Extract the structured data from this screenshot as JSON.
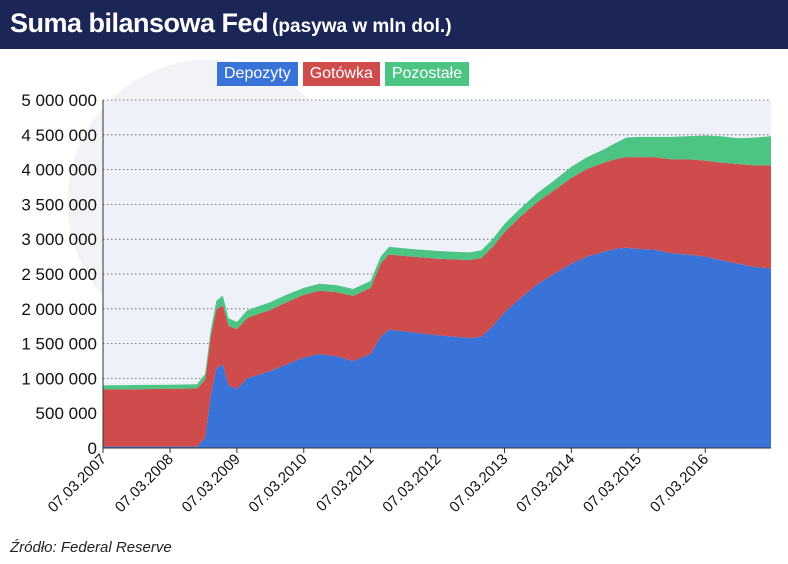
{
  "title": "Suma bilansowa Fed",
  "subtitle": "(pasywa w mln dol.)",
  "source": "Źródło: Federal Reserve",
  "colors": {
    "header": "#1b2556",
    "Depozyty": "#3a73d8",
    "Gotówka": "#cf4c4c",
    "Pozostałe": "#4cc483"
  },
  "chart_data": {
    "type": "area",
    "stacked": true,
    "title": "Suma bilansowa Fed",
    "subtitle": "(pasywa w mln dol.)",
    "legend_position": "top-center",
    "grid": true,
    "ylim": [
      0,
      5000000
    ],
    "yticks": [
      0,
      500000,
      1000000,
      1500000,
      2000000,
      2500000,
      3000000,
      3500000,
      4000000,
      4500000,
      5000000
    ],
    "ytick_labels": [
      "0",
      "500 000",
      "1 000 000",
      "1 500 000",
      "2 000 000",
      "2 500 000",
      "3 000 000",
      "3 500 000",
      "4 000 000",
      "4 500 000",
      "5 000 000"
    ],
    "xlim": [
      "2007-03-07",
      "2017-03-01"
    ],
    "xticks": [
      "2007-03-07",
      "2008-03-07",
      "2009-03-07",
      "2010-03-07",
      "2011-03-07",
      "2012-03-07",
      "2013-03-07",
      "2014-03-07",
      "2015-03-07",
      "2016-03-07"
    ],
    "xtick_labels": [
      "07.03.2007",
      "07.03.2008",
      "07.03.2009",
      "07.03.2010",
      "07.03.2011",
      "07.03.2012",
      "07.03.2013",
      "07.03.2014",
      "07.03.2015",
      "07.03.2016"
    ],
    "x": [
      "2007-03-07",
      "2007-09-01",
      "2008-03-07",
      "2008-08-01",
      "2008-09-15",
      "2008-10-15",
      "2008-11-15",
      "2008-12-20",
      "2009-01-20",
      "2009-03-07",
      "2009-05-01",
      "2009-07-01",
      "2009-09-01",
      "2009-12-01",
      "2010-03-07",
      "2010-06-01",
      "2010-09-01",
      "2010-12-01",
      "2011-03-07",
      "2011-05-01",
      "2011-06-15",
      "2011-09-01",
      "2011-12-01",
      "2012-03-07",
      "2012-06-01",
      "2012-09-01",
      "2012-11-01",
      "2013-01-01",
      "2013-03-07",
      "2013-06-01",
      "2013-09-01",
      "2013-12-01",
      "2014-03-07",
      "2014-06-01",
      "2014-09-01",
      "2014-11-01",
      "2015-01-01",
      "2015-03-07",
      "2015-06-01",
      "2015-09-01",
      "2015-12-01",
      "2016-03-07",
      "2016-06-01",
      "2016-09-01",
      "2016-12-01",
      "2017-03-01"
    ],
    "series": [
      {
        "name": "Depozyty",
        "values": [
          20000,
          20000,
          20000,
          20000,
          150000,
          750000,
          1150000,
          1200000,
          900000,
          850000,
          1000000,
          1050000,
          1100000,
          1200000,
          1300000,
          1350000,
          1320000,
          1250000,
          1350000,
          1600000,
          1700000,
          1680000,
          1650000,
          1620000,
          1600000,
          1580000,
          1600000,
          1750000,
          1950000,
          2150000,
          2350000,
          2500000,
          2650000,
          2750000,
          2820000,
          2860000,
          2880000,
          2860000,
          2850000,
          2800000,
          2780000,
          2750000,
          2700000,
          2650000,
          2600000,
          2580000
        ]
      },
      {
        "name": "Gotówka",
        "values": [
          820000,
          825000,
          830000,
          835000,
          835000,
          840000,
          845000,
          850000,
          855000,
          860000,
          865000,
          875000,
          880000,
          890000,
          900000,
          910000,
          920000,
          935000,
          950000,
          1050000,
          1080000,
          1080000,
          1090000,
          1100000,
          1110000,
          1120000,
          1130000,
          1140000,
          1150000,
          1170000,
          1180000,
          1200000,
          1230000,
          1260000,
          1280000,
          1290000,
          1300000,
          1320000,
          1330000,
          1350000,
          1370000,
          1380000,
          1400000,
          1430000,
          1460000,
          1480000
        ]
      },
      {
        "name": "Pozostałe",
        "values": [
          60000,
          60000,
          60000,
          60000,
          80000,
          100000,
          120000,
          140000,
          110000,
          100000,
          110000,
          110000,
          110000,
          110000,
          100000,
          100000,
          100000,
          100000,
          100000,
          100000,
          110000,
          110000,
          110000,
          110000,
          110000,
          110000,
          110000,
          110000,
          120000,
          120000,
          130000,
          140000,
          160000,
          170000,
          190000,
          230000,
          280000,
          290000,
          290000,
          320000,
          330000,
          360000,
          380000,
          370000,
          400000,
          420000
        ]
      }
    ]
  }
}
